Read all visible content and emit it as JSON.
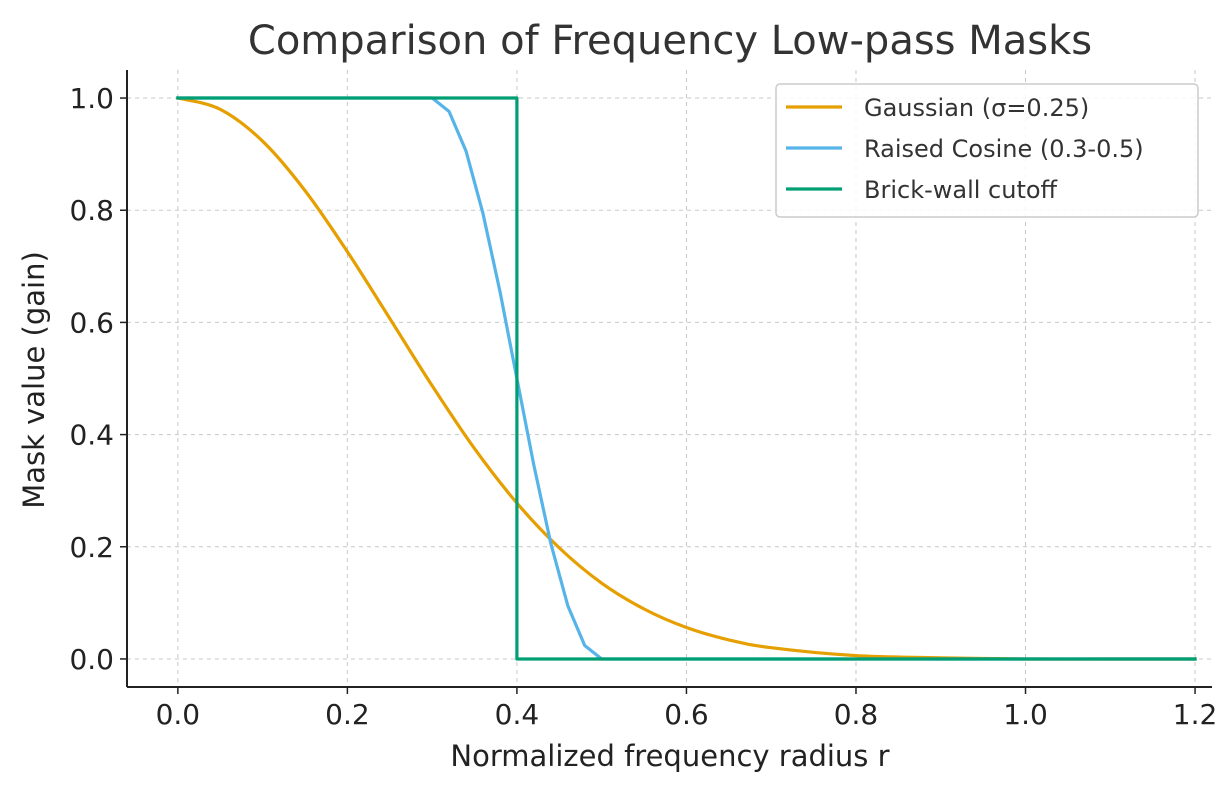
{
  "chart_data": {
    "type": "line",
    "title": "Comparison of Frequency Low-pass Masks",
    "xlabel": "Normalized frequency radius r",
    "ylabel": "Mask value (gain)",
    "xlim": [
      -0.06,
      1.22
    ],
    "ylim": [
      -0.05,
      1.05
    ],
    "xticks": [
      0.0,
      0.2,
      0.4,
      0.6,
      0.8,
      1.0,
      1.2
    ],
    "xtick_labels": [
      "0.0",
      "0.2",
      "0.4",
      "0.6",
      "0.8",
      "1.0",
      "1.2"
    ],
    "yticks": [
      0.0,
      0.2,
      0.4,
      0.6,
      0.8,
      1.0
    ],
    "ytick_labels": [
      "0.0",
      "0.2",
      "0.4",
      "0.6",
      "0.8",
      "1.0"
    ],
    "grid": true,
    "legend_position": "top-right",
    "series": [
      {
        "name": "Gaussian (σ=0.25)",
        "color": "#E69F00",
        "x": [
          0.0,
          0.05,
          0.1,
          0.15,
          0.2,
          0.25,
          0.3,
          0.35,
          0.4,
          0.45,
          0.5,
          0.55,
          0.6,
          0.65,
          0.7,
          0.8,
          0.9,
          1.0,
          1.1,
          1.2
        ],
        "y": [
          1.0,
          0.98,
          0.923,
          0.835,
          0.726,
          0.607,
          0.487,
          0.375,
          0.278,
          0.198,
          0.135,
          0.089,
          0.056,
          0.034,
          0.02,
          0.006,
          0.002,
          0.0,
          0.0,
          0.0
        ]
      },
      {
        "name": "Raised Cosine (0.3-0.5)",
        "color": "#56B4E9",
        "x": [
          0.0,
          0.3,
          0.32,
          0.34,
          0.36,
          0.38,
          0.4,
          0.42,
          0.44,
          0.46,
          0.48,
          0.5,
          1.2
        ],
        "y": [
          1.0,
          1.0,
          0.976,
          0.905,
          0.794,
          0.655,
          0.5,
          0.345,
          0.206,
          0.095,
          0.024,
          0.0,
          0.0
        ]
      },
      {
        "name": "Brick-wall cutoff",
        "color": "#009E73",
        "x": [
          0.0,
          0.4,
          0.4,
          1.2
        ],
        "y": [
          1.0,
          1.0,
          0.0,
          0.0
        ]
      }
    ]
  }
}
